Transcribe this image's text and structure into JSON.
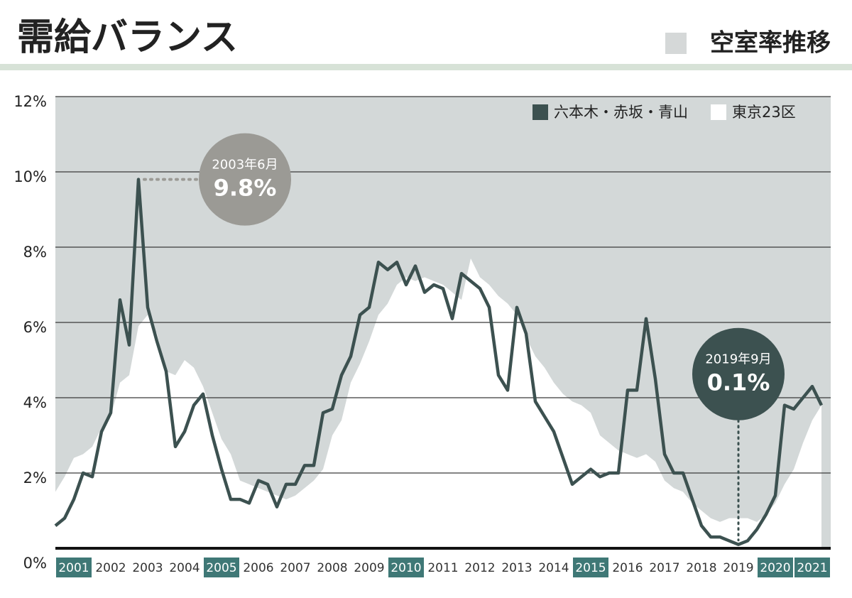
{
  "chart_data": {
    "type": "line",
    "title": "需給バランス",
    "subtitle": "空室率推移",
    "categories": [
      "2001",
      "2002",
      "2003",
      "2004",
      "2005",
      "2006",
      "2007",
      "2008",
      "2009",
      "2010",
      "2011",
      "2012",
      "2013",
      "2014",
      "2015",
      "2016",
      "2017",
      "2018",
      "2019",
      "2020",
      "2021"
    ],
    "highlight": [
      0,
      4,
      9,
      14,
      19,
      20
    ],
    "xlim": [
      2001,
      2022
    ],
    "ylim": [
      0,
      12
    ],
    "yticks": [
      {
        "value": 0,
        "label": "0%"
      },
      {
        "value": 2,
        "label": "2%"
      },
      {
        "value": 4,
        "label": "4%"
      },
      {
        "value": 6,
        "label": "6%"
      },
      {
        "value": 8,
        "label": "8%"
      },
      {
        "value": 10,
        "label": "10%"
      },
      {
        "value": 12,
        "label": "12%"
      }
    ],
    "grid": true,
    "legend": "top-right",
    "x": [
      2001,
      2001.25,
      2001.5,
      2001.75,
      2002,
      2002.25,
      2002.5,
      2002.75,
      2003,
      2003.25,
      2003.5,
      2003.75,
      2004,
      2004.25,
      2004.5,
      2004.75,
      2005,
      2005.25,
      2005.5,
      2005.75,
      2006,
      2006.25,
      2006.5,
      2006.75,
      2007,
      2007.25,
      2007.5,
      2007.75,
      2008,
      2008.25,
      2008.5,
      2008.75,
      2009,
      2009.25,
      2009.5,
      2009.75,
      2010,
      2010.25,
      2010.5,
      2010.75,
      2011,
      2011.25,
      2011.5,
      2011.75,
      2012,
      2012.25,
      2012.5,
      2012.75,
      2013,
      2013.25,
      2013.5,
      2013.75,
      2014,
      2014.25,
      2014.5,
      2014.75,
      2015,
      2015.25,
      2015.5,
      2015.75,
      2016,
      2016.25,
      2016.5,
      2016.75,
      2017,
      2017.25,
      2017.5,
      2017.75,
      2018,
      2018.25,
      2018.5,
      2018.75,
      2019,
      2019.25,
      2019.5,
      2019.75,
      2020,
      2020.25,
      2020.5,
      2020.75,
      2021,
      2021.25,
      2021.5,
      2021.75
    ],
    "series": [
      {
        "name": "六本木・赤坂・青山",
        "color": "#3c5150",
        "style": "line",
        "values": [
          0.6,
          0.8,
          1.3,
          2.0,
          1.9,
          3.1,
          3.6,
          6.6,
          5.4,
          9.8,
          6.4,
          5.5,
          4.7,
          2.7,
          3.1,
          3.8,
          4.1,
          3.0,
          2.1,
          1.3,
          1.3,
          1.2,
          1.8,
          1.7,
          1.1,
          1.7,
          1.7,
          2.2,
          2.2,
          3.6,
          3.7,
          4.6,
          5.1,
          6.2,
          6.4,
          7.6,
          7.4,
          7.6,
          7.0,
          7.5,
          6.8,
          7.0,
          6.9,
          6.1,
          7.3,
          7.1,
          6.9,
          6.4,
          4.6,
          4.2,
          6.4,
          5.7,
          3.9,
          3.5,
          3.1,
          2.4,
          1.7,
          1.9,
          2.1,
          1.9,
          2.0,
          2.0,
          4.2,
          4.2,
          6.1,
          4.5,
          2.5,
          2.0,
          2.0,
          1.3,
          0.6,
          0.3,
          0.3,
          0.2,
          0.1,
          0.2,
          0.5,
          0.9,
          1.4,
          3.8,
          3.7,
          4.0,
          4.3,
          3.8
        ]
      },
      {
        "name": "東京23区",
        "color": "#ffffff",
        "style": "area",
        "values": [
          1.5,
          1.9,
          2.4,
          2.5,
          2.7,
          3.2,
          3.5,
          4.4,
          4.6,
          5.9,
          6.2,
          5.7,
          4.7,
          4.6,
          5.0,
          4.8,
          4.3,
          3.6,
          2.9,
          2.5,
          1.8,
          1.7,
          1.6,
          1.5,
          1.4,
          1.3,
          1.4,
          1.6,
          1.8,
          2.1,
          3.0,
          3.4,
          4.4,
          4.9,
          5.5,
          6.2,
          6.5,
          7.0,
          7.2,
          7.1,
          7.2,
          7.1,
          7.0,
          6.8,
          6.6,
          7.7,
          7.2,
          7.0,
          6.7,
          6.5,
          6.2,
          5.6,
          5.1,
          4.8,
          4.4,
          4.1,
          3.9,
          3.8,
          3.6,
          3.0,
          2.8,
          2.6,
          2.5,
          2.4,
          2.5,
          2.3,
          1.8,
          1.6,
          1.5,
          1.2,
          1.0,
          0.8,
          0.7,
          0.8,
          0.8,
          0.8,
          0.7,
          0.9,
          1.2,
          1.7,
          2.1,
          2.8,
          3.4,
          3.8
        ]
      }
    ],
    "annotations": [
      {
        "date": "2003年6月",
        "text": "9.8%",
        "x": 2003.25,
        "value": 9.8,
        "color": "#9b9a95",
        "side": "right"
      },
      {
        "date": "2019年9月",
        "text": "0.1%",
        "x": 2019.5,
        "value": 0.1,
        "color": "#3c5150",
        "side": "above"
      }
    ]
  }
}
